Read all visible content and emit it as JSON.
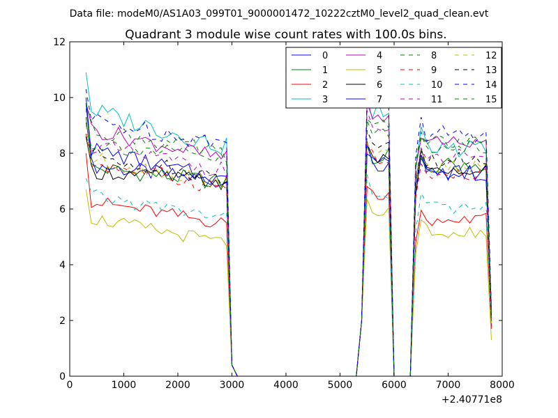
{
  "chart_data": {
    "type": "line",
    "suptitle": "Data file: modeM0/AS1A03_099T01_9000001472_10222cztM0_level2_quad_clean.evt",
    "title": "Quadrant 3 module wise count rates with 100.0s bins.",
    "xlabel": "",
    "ylabel": "",
    "x_offset_label": "+2.40771e8",
    "xlim": [
      0,
      8000
    ],
    "ylim": [
      0,
      12
    ],
    "xticks": [
      0,
      1000,
      2000,
      3000,
      4000,
      5000,
      6000,
      7000,
      8000
    ],
    "xtick_labels": [
      "0",
      "1000",
      "2000",
      "3000",
      "4000",
      "5000",
      "6000",
      "7000",
      "8000"
    ],
    "yticks": [
      0,
      2,
      4,
      6,
      8,
      10,
      12
    ],
    "ytick_labels": [
      "0",
      "2",
      "4",
      "6",
      "8",
      "10",
      "12"
    ],
    "legend_location": "top-right",
    "legend_columns": 4,
    "segments": [
      {
        "x_start": 300,
        "count": 29
      },
      {
        "x_start": 5300,
        "count": 8
      },
      {
        "x_start": 6300,
        "count": 16
      }
    ],
    "series": [
      {
        "name": "0",
        "color": "#0000ff",
        "style": "solid",
        "base": 7.6,
        "drift": -0.7,
        "amp": 0.3,
        "peak": 2.2,
        "seg2": 7.6,
        "seg3": 7.3,
        "last": 1.8
      },
      {
        "name": "1",
        "color": "#008000",
        "style": "solid",
        "base": 7.5,
        "drift": -0.6,
        "amp": 0.3,
        "peak": 1.8,
        "seg2": 7.9,
        "seg3": 7.6,
        "last": 2.0
      },
      {
        "name": "2",
        "color": "#ff0000",
        "style": "solid",
        "base": 6.3,
        "drift": -0.9,
        "amp": 0.25,
        "peak": 1.7,
        "seg2": 6.5,
        "seg3": 5.6,
        "last": 1.7
      },
      {
        "name": "3",
        "color": "#00bfbf",
        "style": "solid",
        "base": 9.6,
        "drift": -1.5,
        "amp": 0.35,
        "peak": 1.3,
        "seg2": 9.6,
        "seg3": 8.2,
        "last": 2.0
      },
      {
        "name": "4",
        "color": "#bf00bf",
        "style": "solid",
        "base": 8.9,
        "drift": -1.2,
        "amp": 0.3,
        "peak": 0.9,
        "seg2": 9.2,
        "seg3": 8.3,
        "last": 2.2
      },
      {
        "name": "5",
        "color": "#bfbf00",
        "style": "solid",
        "base": 5.7,
        "drift": -1.0,
        "amp": 0.25,
        "peak": 1.0,
        "seg2": 6.0,
        "seg3": 5.2,
        "last": 1.3
      },
      {
        "name": "6",
        "color": "#000000",
        "style": "solid",
        "base": 7.4,
        "drift": -0.5,
        "amp": 0.3,
        "peak": 1.2,
        "seg2": 7.9,
        "seg3": 7.5,
        "last": 1.9
      },
      {
        "name": "7",
        "color": "#0000ff",
        "style": "solid",
        "base": 8.2,
        "drift": -1.3,
        "amp": 0.3,
        "peak": 1.8,
        "seg2": 7.5,
        "seg3": 7.3,
        "last": 2.4
      },
      {
        "name": "8",
        "color": "#008000",
        "style": "dashed",
        "base": 8.9,
        "drift": -1.0,
        "amp": 0.3,
        "peak": 0.9,
        "seg2": 8.9,
        "seg3": 8.5,
        "last": 2.1
      },
      {
        "name": "9",
        "color": "#ff0000",
        "style": "dashed",
        "base": 7.7,
        "drift": -1.0,
        "amp": 0.3,
        "peak": 1.0,
        "seg2": 7.8,
        "seg3": 7.2,
        "last": 2.0
      },
      {
        "name": "10",
        "color": "#00bfbf",
        "style": "dashed",
        "base": 6.5,
        "drift": -0.9,
        "amp": 0.25,
        "peak": 0.6,
        "seg2": 6.5,
        "seg3": 6.0,
        "last": 1.8
      },
      {
        "name": "11",
        "color": "#bf00bf",
        "style": "dashed",
        "base": 8.3,
        "drift": -1.0,
        "amp": 0.3,
        "peak": 0.8,
        "seg2": 8.8,
        "seg3": 7.9,
        "last": 2.3
      },
      {
        "name": "12",
        "color": "#bfbf00",
        "style": "dashed",
        "base": 7.8,
        "drift": -0.9,
        "amp": 0.3,
        "peak": 1.2,
        "seg2": 8.0,
        "seg3": 7.5,
        "last": 1.9
      },
      {
        "name": "13",
        "color": "#000000",
        "style": "dashed",
        "base": 8.0,
        "drift": -1.0,
        "amp": 0.3,
        "peak": 0.6,
        "seg2": 8.3,
        "seg3": 7.8,
        "last": 2.0
      },
      {
        "name": "14",
        "color": "#0000ff",
        "style": "dashed",
        "base": 9.2,
        "drift": -0.9,
        "amp": 0.35,
        "peak": 1.1,
        "seg2": 9.4,
        "seg3": 8.7,
        "last": 2.5
      },
      {
        "name": "15",
        "color": "#008000",
        "style": "dashed",
        "base": 8.4,
        "drift": -0.7,
        "amp": 0.3,
        "peak": 1.2,
        "seg2": 8.8,
        "seg3": 8.3,
        "last": 2.2
      }
    ]
  }
}
